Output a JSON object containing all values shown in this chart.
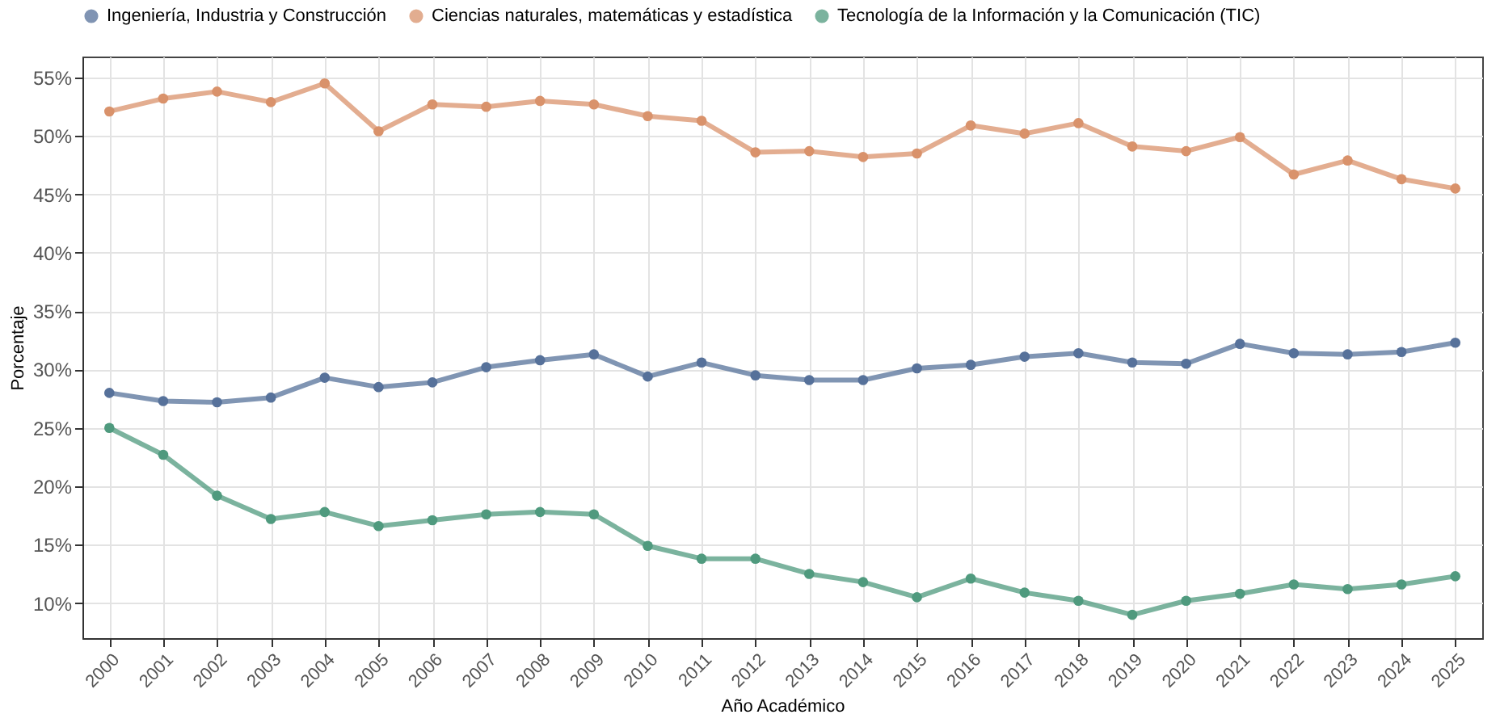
{
  "chart_data": {
    "type": "line",
    "xlabel": "Año Académico",
    "ylabel": "Porcentaje",
    "categories": [
      "2000",
      "2001",
      "2002",
      "2003",
      "2004",
      "2005",
      "2006",
      "2007",
      "2008",
      "2009",
      "2010",
      "2011",
      "2012",
      "2013",
      "2014",
      "2015",
      "2016",
      "2017",
      "2018",
      "2019",
      "2020",
      "2021",
      "2022",
      "2023",
      "2024",
      "2025"
    ],
    "series": [
      {
        "name": "Ingeniería, Industria y Construcción",
        "color": "#56719a",
        "values": [
          28.0,
          27.3,
          27.2,
          27.6,
          29.3,
          28.5,
          28.9,
          30.2,
          30.8,
          31.3,
          29.4,
          30.6,
          29.5,
          29.1,
          29.1,
          30.1,
          30.4,
          31.1,
          31.4,
          30.6,
          30.5,
          32.2,
          31.4,
          31.3,
          31.5,
          32.3
        ]
      },
      {
        "name": "Ciencias naturales, matemáticas y estadística",
        "color": "#d9926b",
        "values": [
          52.1,
          53.2,
          53.8,
          52.9,
          54.5,
          50.4,
          52.7,
          52.5,
          53.0,
          52.7,
          51.7,
          51.3,
          48.6,
          48.7,
          48.2,
          48.5,
          50.9,
          50.2,
          51.1,
          49.1,
          48.7,
          49.9,
          46.7,
          47.9,
          46.3,
          45.5
        ]
      },
      {
        "name": "Tecnología de la Información y la Comunicación (TIC)",
        "color": "#4f9a7e",
        "values": [
          25.0,
          22.7,
          19.2,
          17.2,
          17.8,
          16.6,
          17.1,
          17.6,
          17.8,
          17.6,
          14.9,
          13.8,
          13.8,
          12.5,
          11.8,
          10.5,
          12.1,
          10.9,
          10.2,
          9.0,
          10.2,
          10.8,
          11.6,
          11.2,
          11.6,
          12.3
        ]
      }
    ],
    "ylim": [
      7,
      56.8
    ],
    "yticks": [
      {
        "value": 10,
        "label": "10%"
      },
      {
        "value": 15,
        "label": "15%"
      },
      {
        "value": 20,
        "label": "20%"
      },
      {
        "value": 25,
        "label": "25%"
      },
      {
        "value": 30,
        "label": "30%"
      },
      {
        "value": 35,
        "label": "35%"
      },
      {
        "value": 40,
        "label": "40%"
      },
      {
        "value": 45,
        "label": "45%"
      },
      {
        "value": 50,
        "label": "50%"
      },
      {
        "value": 55,
        "label": "55%"
      }
    ],
    "grid": true,
    "legend": "top",
    "marker": "circle",
    "line_style": "solid"
  }
}
